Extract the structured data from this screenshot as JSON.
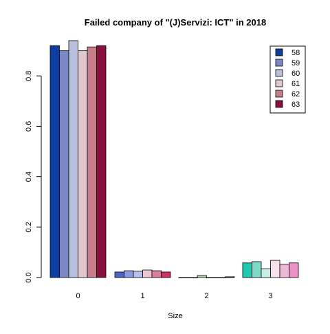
{
  "chart_data": {
    "type": "bar",
    "title": "Failed company of  \"(J)Servizi: ICT\" in 2018",
    "xlabel": "Size",
    "ylabel": "",
    "categories": [
      "0",
      "1",
      "2",
      "3"
    ],
    "ylim": [
      0,
      0.94
    ],
    "yticks": [
      "0.0",
      "0.2",
      "0.4",
      "0.6",
      "0.8"
    ],
    "legend_position": "top-right",
    "series": [
      {
        "name": "58",
        "values": [
          0.92,
          0.022,
          0.0,
          0.058
        ]
      },
      {
        "name": "59",
        "values": [
          0.9,
          0.027,
          0.0,
          0.063
        ]
      },
      {
        "name": "60",
        "values": [
          0.94,
          0.025,
          0.008,
          0.035
        ]
      },
      {
        "name": "61",
        "values": [
          0.9,
          0.03,
          0.0,
          0.068
        ]
      },
      {
        "name": "62",
        "values": [
          0.915,
          0.027,
          0.0,
          0.052
        ]
      },
      {
        "name": "63",
        "values": [
          0.92,
          0.022,
          0.003,
          0.058
        ]
      }
    ],
    "group_colors": [
      [
        "#0D3FA0",
        "#7B88C8",
        "#B8BFDD",
        "#E0C8CE",
        "#C77D8A",
        "#8A0F3F"
      ],
      [
        "#4A64C8",
        "#8A9AE0",
        "#B8C0EE",
        "#EEC8D0",
        "#E07A9A",
        "#D0306A"
      ],
      [
        "#3A8A3A",
        "#74B874",
        "#A8D8A8",
        "#D0E0D0",
        "#808080",
        "#404040"
      ],
      [
        "#20C8B0",
        "#80D8C8",
        "#C8EEE8",
        "#F8E0EC",
        "#F0B8D8",
        "#F090C8"
      ]
    ],
    "legend_colors": [
      "#0D3FA0",
      "#7B88C8",
      "#B8BFDD",
      "#E0C8CE",
      "#C77D8A",
      "#8A0F3F"
    ]
  }
}
